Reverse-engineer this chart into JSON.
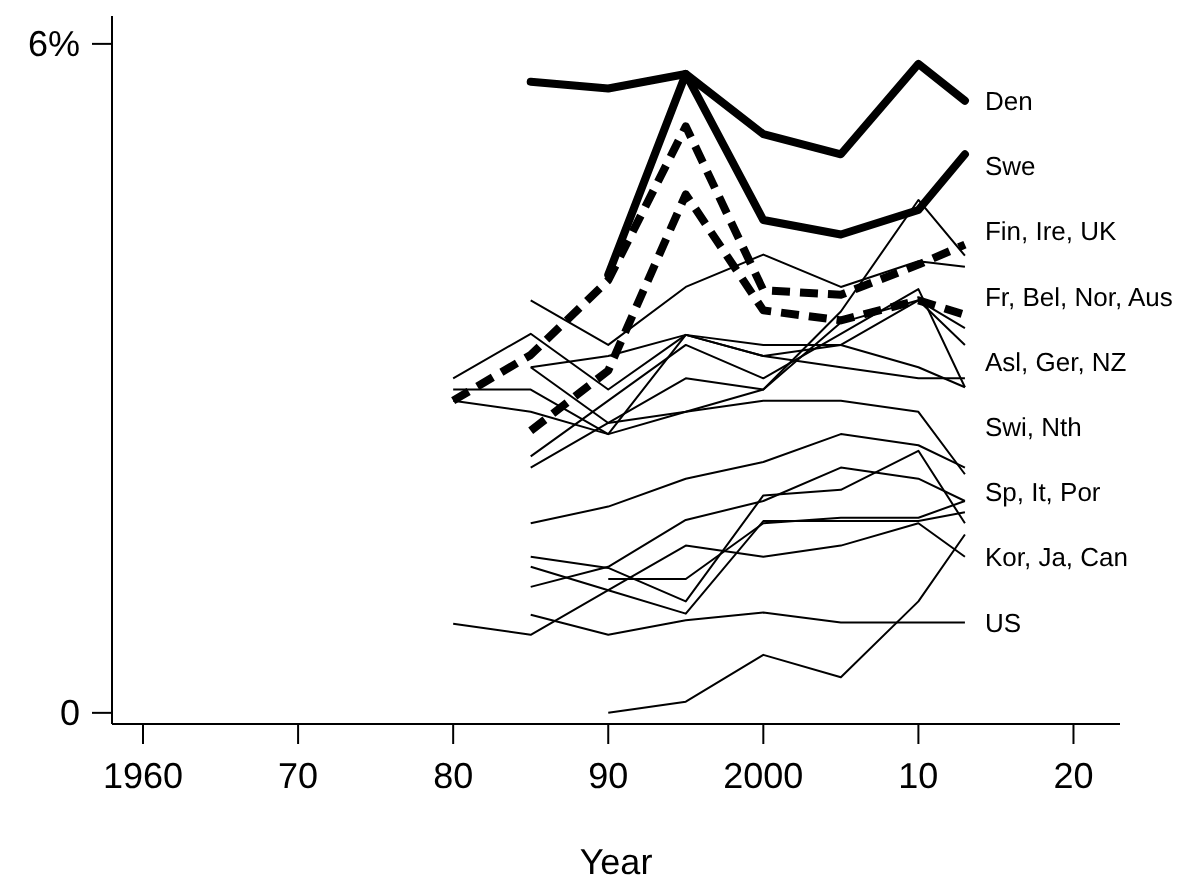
{
  "chart_data": {
    "type": "line",
    "xlabel": "Year",
    "xlim": [
      1958,
      2023
    ],
    "xticks": [
      {
        "value": 1960,
        "label": "1960"
      },
      {
        "value": 1970,
        "label": "70"
      },
      {
        "value": 1980,
        "label": "80"
      },
      {
        "value": 1990,
        "label": "90"
      },
      {
        "value": 2000,
        "label": "2000"
      },
      {
        "value": 2010,
        "label": "10"
      },
      {
        "value": 2020,
        "label": "20"
      }
    ],
    "ylim": [
      -0.1,
      6.25
    ],
    "yticks": [
      0,
      {
        "value": 6,
        "label": "6%"
      }
    ],
    "grid": false,
    "line_style": "solid",
    "marker": "none",
    "series": [
      {
        "color": "#000000",
        "line_style": "solid",
        "x": [
          1985,
          1990,
          1995,
          2000,
          2005,
          2010,
          2013
        ],
        "values": [
          5.66,
          5.6,
          5.73,
          5.19,
          5.01,
          5.82,
          5.49
        ]
      },
      {
        "color": "#000000",
        "line_style": "solid",
        "x": [
          1990,
          1995,
          2000,
          2005,
          2010,
          2013
        ],
        "values": [
          3.93,
          5.73,
          4.42,
          4.29,
          4.51,
          5.01
        ]
      },
      {
        "color": "#000000",
        "line_style": "dashed",
        "x": [
          1980,
          1985,
          1990,
          1995,
          2000,
          2005,
          2010,
          2013
        ],
        "values": [
          2.8,
          3.21,
          3.88,
          5.26,
          3.79,
          3.75,
          4.02,
          4.2
        ]
      },
      {
        "color": "#000000",
        "line_style": "dashed",
        "x": [
          1985,
          1990,
          1995,
          2000,
          2005,
          2010,
          2013
        ],
        "values": [
          2.53,
          3.07,
          4.65,
          3.61,
          3.52,
          3.7,
          3.57
        ]
      },
      {
        "color": "#000000",
        "x": [
          1985,
          1990,
          1995,
          2000,
          2005,
          2010,
          2013
        ],
        "values": [
          3.7,
          3.3,
          3.82,
          4.11,
          3.82,
          4.05,
          4.0
        ]
      },
      {
        "color": "#000000",
        "x": [
          1985,
          1990,
          1995,
          2000,
          2005,
          2010,
          2013
        ],
        "values": [
          2.2,
          2.6,
          3.0,
          2.9,
          3.6,
          4.6,
          4.1
        ]
      },
      {
        "color": "#000000",
        "x": [
          1980,
          1985,
          1990,
          1995,
          2000,
          2005,
          2010,
          2013
        ],
        "values": [
          3.0,
          3.4,
          2.9,
          3.39,
          3.3,
          3.3,
          3.1,
          2.92
        ]
      },
      {
        "color": "#000000",
        "x": [
          1980,
          1985,
          1990,
          1995,
          2000,
          2005,
          2010,
          2013
        ],
        "values": [
          2.9,
          2.9,
          2.5,
          3.39,
          3.2,
          3.1,
          3.0,
          3.0
        ]
      },
      {
        "color": "#000000",
        "x": [
          1985,
          1990,
          1995,
          2000,
          2005,
          2010,
          2013
        ],
        "values": [
          3.1,
          3.2,
          3.39,
          3.2,
          3.3,
          3.7,
          3.45
        ]
      },
      {
        "color": "#000000",
        "x": [
          1985,
          1990,
          1995,
          2000,
          2005,
          2010,
          2013
        ],
        "values": [
          2.3,
          2.8,
          3.3,
          3.0,
          3.4,
          3.8,
          2.92
        ]
      },
      {
        "color": "#000000",
        "x": [
          1985,
          1990,
          1995,
          2000,
          2005,
          2010,
          2013
        ],
        "values": [
          3.1,
          2.6,
          2.7,
          2.9,
          3.5,
          3.7,
          3.3
        ]
      },
      {
        "color": "#000000",
        "x": [
          1980,
          1985,
          1990,
          1995,
          2000,
          2005,
          2010,
          2013
        ],
        "values": [
          2.8,
          2.7,
          2.5,
          2.7,
          2.8,
          2.8,
          2.7,
          2.14
        ]
      },
      {
        "color": "#000000",
        "x": [
          1985,
          1990,
          1995,
          2000,
          2005,
          2010,
          2013
        ],
        "values": [
          1.7,
          1.85,
          2.1,
          2.25,
          2.5,
          2.4,
          2.2
        ]
      },
      {
        "color": "#000000",
        "x": [
          1985,
          1990,
          1995,
          2000,
          2005,
          2010,
          2013
        ],
        "values": [
          1.13,
          1.31,
          1.73,
          1.9,
          2.2,
          2.1,
          1.9
        ]
      },
      {
        "color": "#000000",
        "x": [
          1985,
          1990,
          1995,
          2000,
          2005,
          2010,
          2013
        ],
        "values": [
          1.4,
          1.3,
          1.0,
          1.95,
          2.0,
          2.35,
          1.7
        ]
      },
      {
        "color": "#000000",
        "x": [
          1990,
          1995,
          2000,
          2005,
          2010,
          2013
        ],
        "values": [
          1.2,
          1.2,
          1.7,
          1.75,
          1.75,
          1.9
        ]
      },
      {
        "color": "#000000",
        "x": [
          1980,
          1985,
          1990,
          1995,
          2000,
          2005,
          2010,
          2013
        ],
        "values": [
          0.8,
          0.7,
          1.1,
          1.5,
          1.4,
          1.5,
          1.7,
          1.4
        ]
      },
      {
        "color": "#000000",
        "x": [
          1985,
          1990,
          1995,
          2000,
          2005,
          2010,
          2013
        ],
        "values": [
          1.31,
          1.1,
          0.89,
          1.72,
          1.72,
          1.72,
          1.8
        ]
      },
      {
        "color": "#000000",
        "x": [
          1990,
          1995,
          2000,
          2005,
          2010,
          2013
        ],
        "values": [
          0.0,
          0.1,
          0.52,
          0.32,
          1.0,
          1.6
        ]
      },
      {
        "color": "#000000",
        "x": [
          1985,
          1990,
          1995,
          2000,
          2005,
          2010,
          2013
        ],
        "values": [
          0.88,
          0.7,
          0.83,
          0.9,
          0.81,
          0.81,
          0.81
        ]
      }
    ],
    "annotations": [
      "Den",
      "Swe",
      "Fin, Ire, UK",
      "Fr, Bel, Nor, Aus",
      "Asl, Ger, NZ",
      "Swi, Nth",
      "Sp, It, Por",
      "Kor, Ja, Can",
      "US"
    ]
  }
}
